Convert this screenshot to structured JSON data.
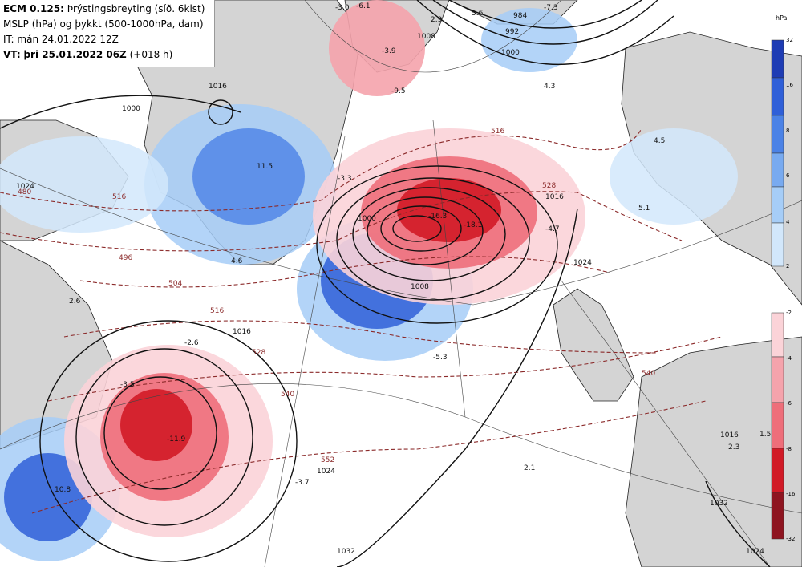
{
  "header": {
    "model": "ECM 0.125:",
    "title_rest": "Þrýstingsbreyting (síð. 6klst)",
    "line2": "MSLP (hPa) og þykkt (500-1000hPa, dam)",
    "line3": "IT: mán 24.01.2022 12Z",
    "vt_prefix": "VT:",
    "vt_value": "þri 25.01.2022 06Z",
    "vt_suffix": "(+018 h)"
  },
  "legend_rise": {
    "unit": "hPa",
    "ticks": [
      "32",
      "16",
      "8",
      "6",
      "4",
      "2"
    ],
    "colors": [
      "#1e3cb4",
      "#2f5fd8",
      "#4b82e6",
      "#78aaf0",
      "#a6cdf7",
      "#d2e7fb"
    ]
  },
  "legend_fall": {
    "ticks": [
      "-2",
      "-4",
      "-6",
      "-8",
      "-16",
      "-32"
    ],
    "colors": [
      "#fbd3d8",
      "#f5a3ac",
      "#ee6e7a",
      "#e43a48",
      "#d11a26",
      "#8e1420"
    ]
  },
  "isobar_labels": [
    "1000",
    "1008",
    "1016",
    "1016",
    "1024",
    "1032",
    "1032",
    "1000",
    "984",
    "992",
    "1000",
    "1008",
    "1024",
    "1016",
    "1024",
    "1024",
    "1016"
  ],
  "thickness_labels": [
    "516",
    "528",
    "504",
    "496",
    "516",
    "528",
    "540",
    "552",
    "516",
    "480",
    "540"
  ],
  "tendency_labels": [
    "-3.0",
    "-6.1",
    "2.9",
    "5.6",
    "-7.3",
    "-3.9",
    "-9.5",
    "-3.3",
    "-16.3",
    "-18.1",
    "-4.7",
    "4.5",
    "11.5",
    "4.6",
    "2.6",
    "-2.6",
    "-5.3",
    "4.3",
    "5.1",
    "-11.9",
    "10.8",
    "-3.7",
    "2.1",
    "1.5",
    "2.3",
    "-3.5"
  ]
}
